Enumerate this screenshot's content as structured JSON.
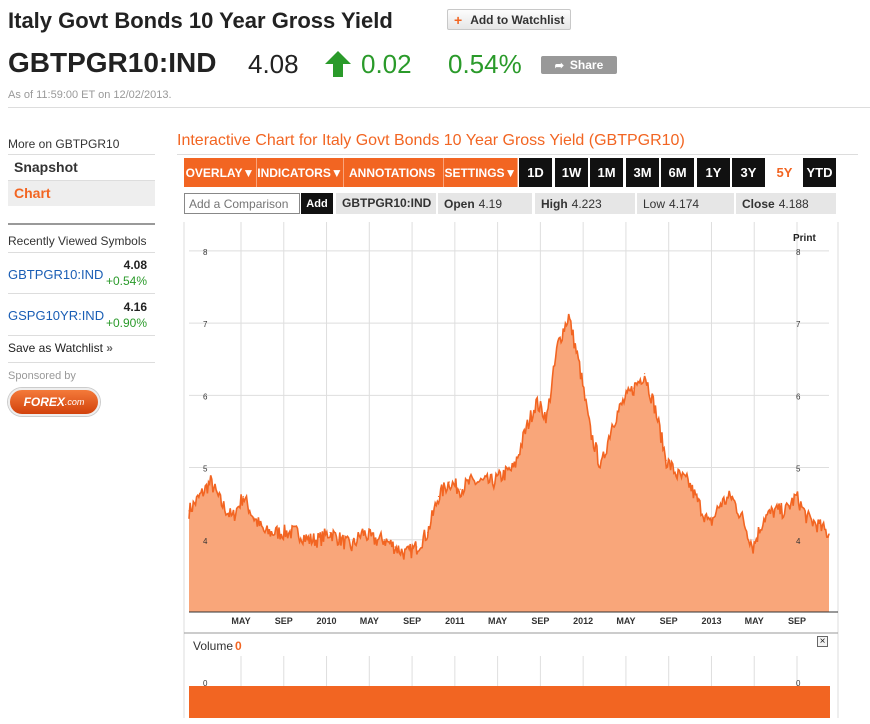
{
  "header": {
    "title": "Italy Govt Bonds 10 Year Gross Yield",
    "watchlist_label": "Add to Watchlist",
    "ticker": "GBTPGR10:IND",
    "price": "4.08",
    "change": "0.02",
    "change_pct": "0.54%",
    "share_label": "Share",
    "as_of": "As of 11:59:00 ET on 12/02/2013."
  },
  "sidebar": {
    "more_on": "More on GBTPGR10",
    "nav": [
      "Snapshot",
      "Chart"
    ],
    "recently_title": "Recently Viewed Symbols",
    "recent": [
      {
        "symbol": "GBTPGR10:IND",
        "price": "4.08",
        "change": "+0.54%"
      },
      {
        "symbol": "GSPG10YR:IND",
        "price": "4.16",
        "change": "+0.90%"
      }
    ],
    "save_watchlist": "Save as Watchlist",
    "sponsored": "Sponsored by",
    "sponsor_logo": "FOREX",
    "sponsor_suffix": ".com"
  },
  "chart_header": {
    "title": "Interactive Chart for Italy Govt Bonds 10 Year Gross Yield (GBTPGR10)",
    "menus": [
      "OVERLAY",
      "INDICATORS",
      "ANNOTATIONS",
      "SETTINGS"
    ],
    "ranges": [
      "1D",
      "1W",
      "1M",
      "3M",
      "6M",
      "1Y",
      "3Y",
      "5Y",
      "YTD"
    ],
    "active_range": "5Y",
    "compare_placeholder": "Add a Comparison",
    "add_label": "Add",
    "symbol": "GBTPGR10:IND",
    "open_label": "Open",
    "open_value": "4.19",
    "high_label": "High",
    "high_value": "4.223",
    "low_label": "Low",
    "low_value": "4.174",
    "close_label": "Close",
    "close_value": "4.188",
    "print_label": "Print",
    "volume_label": "Volume",
    "volume_value": "0"
  },
  "colors": {
    "accent": "#f26522",
    "area_fill": "#f9a67a",
    "line": "#f26522",
    "positive": "#2a9a2a",
    "link": "#1a5eb5"
  },
  "chart_data": {
    "type": "area",
    "title": "",
    "xlabel": "",
    "ylabel": "",
    "ylim": [
      3.0,
      8.4
    ],
    "yticks": [
      4,
      5,
      6,
      7,
      8
    ],
    "grid": true,
    "xtick_labels": [
      "MAY",
      "SEP",
      "2010",
      "MAY",
      "SEP",
      "2011",
      "MAY",
      "SEP",
      "2012",
      "MAY",
      "SEP",
      "2013",
      "MAY",
      "SEP"
    ],
    "x": [
      "2009-01",
      "2009-02",
      "2009-03",
      "2009-04",
      "2009-05",
      "2009-06",
      "2009-07",
      "2009-08",
      "2009-09",
      "2009-10",
      "2009-11",
      "2009-12",
      "2010-01",
      "2010-02",
      "2010-03",
      "2010-04",
      "2010-05",
      "2010-06",
      "2010-07",
      "2010-08",
      "2010-09",
      "2010-10",
      "2010-11",
      "2010-12",
      "2011-01",
      "2011-02",
      "2011-03",
      "2011-04",
      "2011-05",
      "2011-06",
      "2011-07",
      "2011-08",
      "2011-09",
      "2011-10",
      "2011-11",
      "2011-12",
      "2012-01",
      "2012-02",
      "2012-03",
      "2012-04",
      "2012-05",
      "2012-06",
      "2012-07",
      "2012-08",
      "2012-09",
      "2012-10",
      "2012-11",
      "2012-12",
      "2013-01",
      "2013-02",
      "2013-03",
      "2013-04",
      "2013-05",
      "2013-06",
      "2013-07",
      "2013-08",
      "2013-09",
      "2013-10",
      "2013-11",
      "2013-12"
    ],
    "series": [
      {
        "values": [
          4.4,
          4.6,
          4.8,
          4.5,
          4.3,
          4.6,
          4.3,
          4.1,
          4.1,
          4.1,
          4.1,
          4.0,
          4.0,
          4.1,
          4.0,
          3.9,
          4.1,
          4.0,
          4.0,
          3.9,
          3.8,
          3.9,
          4.1,
          4.6,
          4.8,
          4.7,
          4.8,
          4.8,
          4.8,
          4.9,
          5.0,
          5.5,
          5.9,
          5.7,
          6.7,
          7.1,
          6.4,
          5.5,
          5.0,
          5.6,
          5.9,
          6.1,
          6.3,
          5.8,
          5.1,
          4.9,
          4.8,
          4.5,
          4.2,
          4.5,
          4.6,
          4.3,
          3.9,
          4.3,
          4.4,
          4.4,
          4.6,
          4.3,
          4.2,
          4.08
        ]
      }
    ]
  }
}
